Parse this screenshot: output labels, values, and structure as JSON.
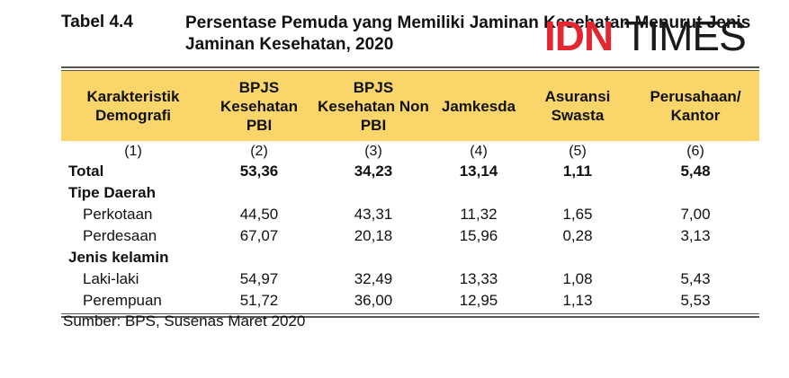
{
  "title": {
    "label": "Tabel 4.4",
    "text": "Persentase Pemuda yang Memiliki Jaminan Kesehatan Menurut Jenis Jaminan Kesehatan, 2020"
  },
  "logo": {
    "part1": "IDN",
    "part2": "TIMES",
    "accent": "#e3262f"
  },
  "table": {
    "header_color": "#f9d56a",
    "columns": [
      "Karakteristik Demografi",
      "BPJS Kesehatan PBI",
      "BPJS Kesehatan Non PBI",
      "Jamkesda",
      "Asuransi Swasta",
      "Perusahaan/ Kantor"
    ],
    "column_numbers": [
      "(1)",
      "(2)",
      "(3)",
      "(4)",
      "(5)",
      "(6)"
    ],
    "rows": [
      {
        "label": "Total",
        "values": [
          "53,36",
          "34,23",
          "13,14",
          "1,11",
          "5,48"
        ]
      },
      {
        "label": "Tipe Daerah",
        "values": [
          "",
          "",
          "",
          "",
          ""
        ]
      },
      {
        "label": "Perkotaan",
        "values": [
          "44,50",
          "43,31",
          "11,32",
          "1,65",
          "7,00"
        ]
      },
      {
        "label": "Perdesaan",
        "values": [
          "67,07",
          "20,18",
          "15,96",
          "0,28",
          "3,13"
        ]
      },
      {
        "label": "Jenis kelamin",
        "values": [
          "",
          "",
          "",
          "",
          ""
        ]
      },
      {
        "label": "Laki-laki",
        "values": [
          "54,97",
          "32,49",
          "13,33",
          "1,08",
          "5,43"
        ]
      },
      {
        "label": "Perempuan",
        "values": [
          "51,72",
          "36,00",
          "12,95",
          "1,13",
          "5,53"
        ]
      }
    ]
  },
  "source": "Sumber: BPS, Susenas Maret 2020"
}
